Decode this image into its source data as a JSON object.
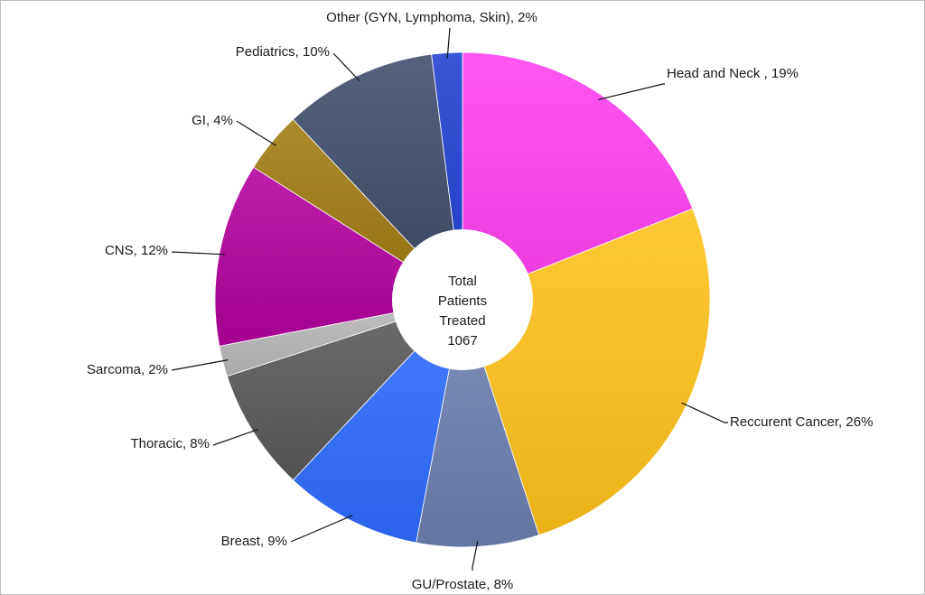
{
  "chart_data": {
    "type": "pie",
    "title": "",
    "center_label": [
      "Total",
      "Patients",
      "Treated",
      "1067"
    ],
    "slices": [
      {
        "label": "Head and Neck , 19%",
        "value": 19,
        "color": "#ff3ff0"
      },
      {
        "label": "Reccurent Cancer, 26%",
        "value": 26,
        "color": "#ffc21a"
      },
      {
        "label": "GU/Prostate, 8%",
        "value": 8,
        "color": "#6d7fb0"
      },
      {
        "label": "Breast, 9%",
        "value": 9,
        "color": "#2f6bff"
      },
      {
        "label": "Thoracic, 8%",
        "value": 8,
        "color": "#595959"
      },
      {
        "label": "Sarcoma, 2%",
        "value": 2,
        "color": "#b8b8b8"
      },
      {
        "label": "CNS, 12%",
        "value": 12,
        "color": "#b3009e"
      },
      {
        "label": "GI, 4%",
        "value": 4,
        "color": "#a07a10"
      },
      {
        "label": "Pediatrics, 10%",
        "value": 10,
        "color": "#3f4b6b"
      },
      {
        "label": "Other (GYN, Lymphoma, Skin), 2%",
        "value": 2,
        "color": "#1f3fd0"
      }
    ]
  }
}
